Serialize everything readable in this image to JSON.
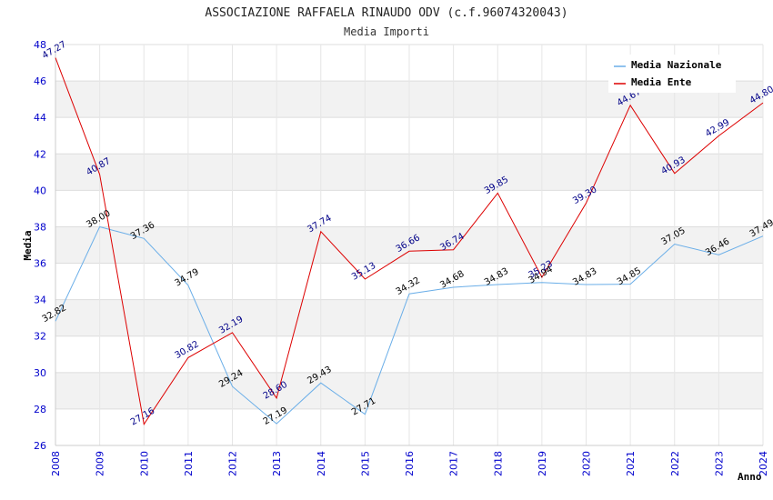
{
  "chart_data": {
    "type": "line",
    "title": "ASSOCIAZIONE RAFFAELA RINAUDO ODV (c.f.96074320043)",
    "subtitle": "Media Importi",
    "xlabel": "Anno",
    "ylabel": "Media",
    "ylim": [
      26,
      48
    ],
    "ytick_step": 2,
    "grid": true,
    "legend_position": "top-right",
    "categories": [
      "2008",
      "2009",
      "2010",
      "2011",
      "2012",
      "2013",
      "2014",
      "2015",
      "2016",
      "2017",
      "2018",
      "2019",
      "2020",
      "2021",
      "2022",
      "2023",
      "2024"
    ],
    "series": [
      {
        "name": "Media Nazionale",
        "color": "#6aaee8",
        "label_color": "#000000",
        "values": [
          32.82,
          38.0,
          37.36,
          34.79,
          29.24,
          27.19,
          29.43,
          27.71,
          34.32,
          34.68,
          34.83,
          34.94,
          34.83,
          34.85,
          37.05,
          36.46,
          37.49
        ]
      },
      {
        "name": "Media Ente",
        "color": "#dd0000",
        "label_color": "#000088",
        "values": [
          47.27,
          40.87,
          27.16,
          30.82,
          32.19,
          28.6,
          37.74,
          35.13,
          36.66,
          36.74,
          39.85,
          35.23,
          39.3,
          44.67,
          40.93,
          42.99,
          44.8
        ]
      }
    ]
  }
}
